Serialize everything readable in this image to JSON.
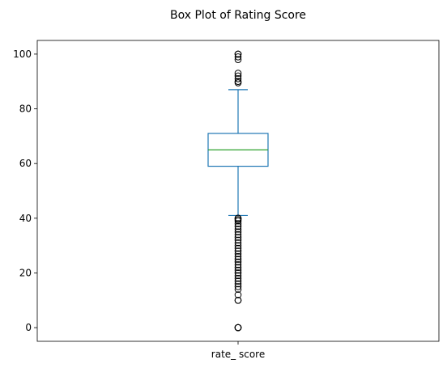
{
  "chart_data": {
    "type": "box",
    "title": "Box Plot of Rating Score",
    "xlabel": "",
    "ylabel": "",
    "categories": [
      "rate_ score"
    ],
    "ylim": [
      -5,
      105
    ],
    "yticks": [
      0,
      20,
      40,
      60,
      80,
      100
    ],
    "grid": false,
    "box": {
      "category": "rate_ score",
      "whisker_low": 41,
      "q1": 59,
      "median": 65,
      "q3": 71,
      "whisker_high": 87
    },
    "fliers": [
      0,
      0,
      0,
      0,
      10,
      10,
      12,
      14,
      15,
      16,
      17,
      18,
      19,
      20,
      21,
      22,
      23,
      24,
      25,
      26,
      27,
      28,
      29,
      30,
      31,
      32,
      33,
      34,
      35,
      36,
      37,
      38,
      39,
      39.5,
      40,
      40,
      89.5,
      90,
      91,
      92,
      93,
      98,
      99,
      100,
      100
    ]
  }
}
